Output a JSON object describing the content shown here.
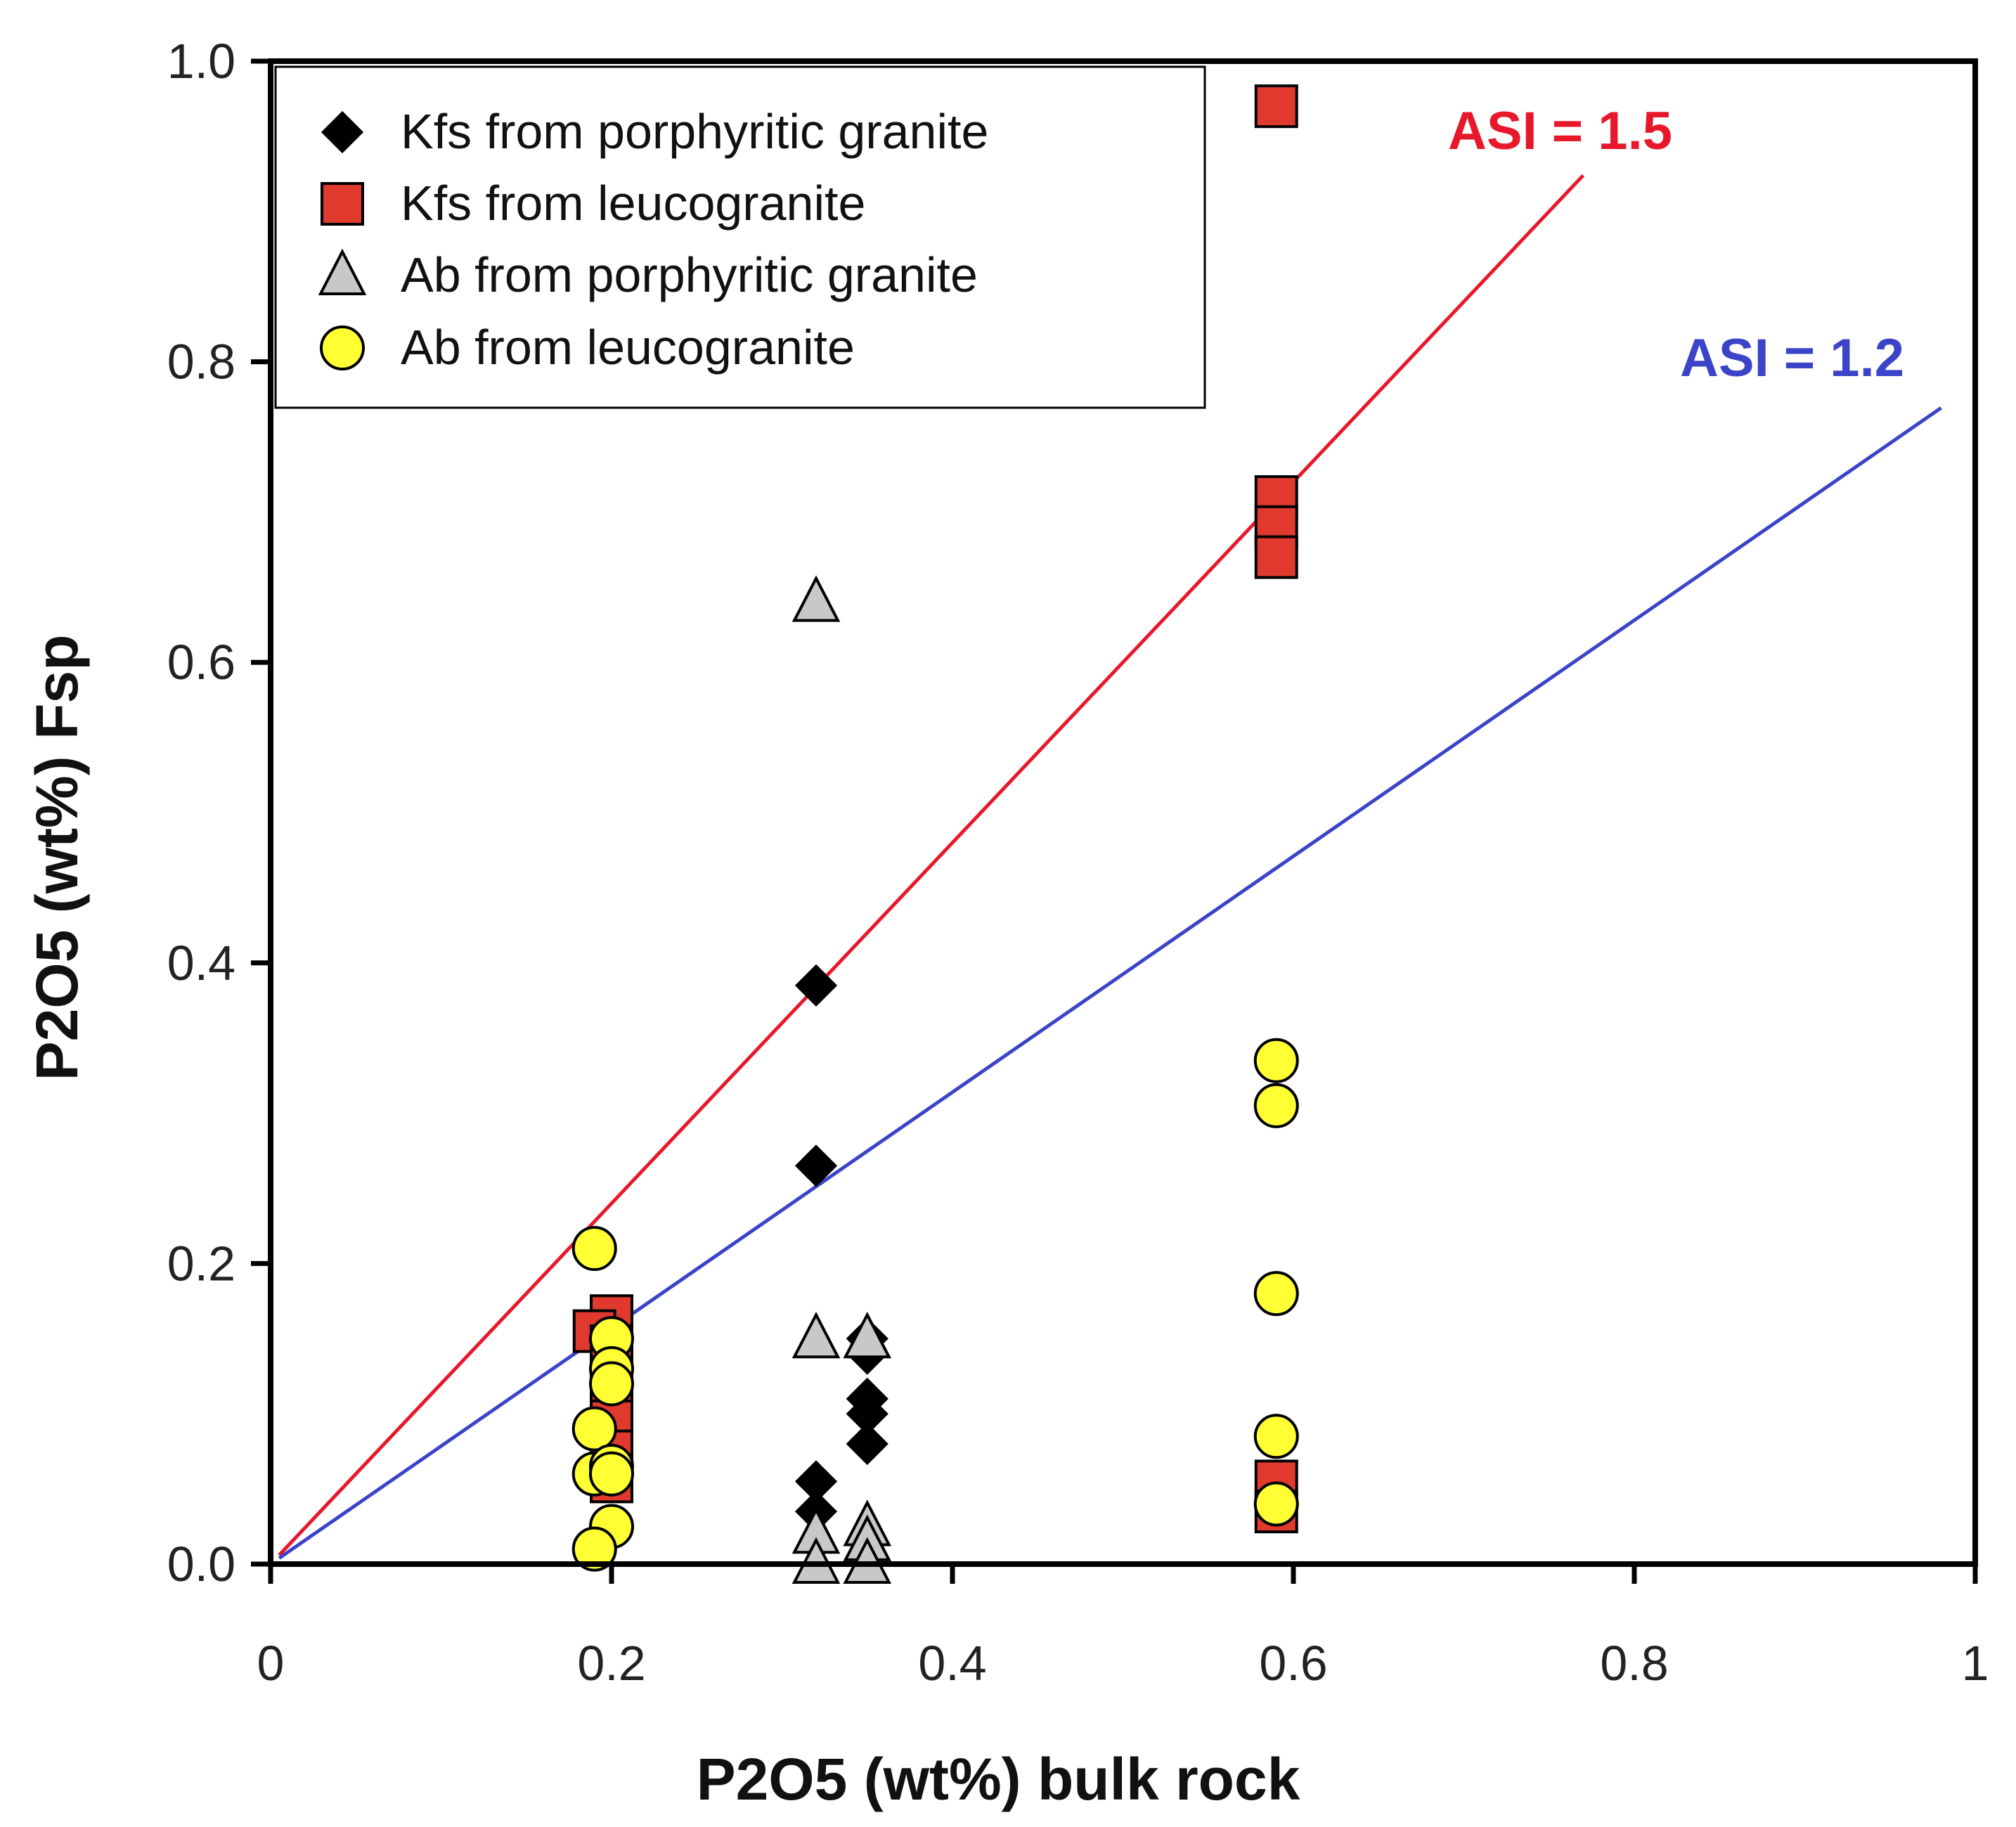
{
  "chart_data": {
    "type": "scatter",
    "title": "",
    "xlabel": "P2O5 (wt%) bulk rock",
    "ylabel": "P2O5 (wt%) Fsp",
    "xlim": [
      0,
      1
    ],
    "ylim": [
      0,
      1
    ],
    "x_ticks": [
      0,
      0.2,
      0.4,
      0.6,
      0.8,
      1
    ],
    "x_tick_labels": [
      "0",
      "0.2",
      "0.4",
      "0.6",
      "0.8",
      "1"
    ],
    "y_ticks": [
      0,
      0.2,
      0.4,
      0.6,
      0.8,
      1.0
    ],
    "y_tick_labels": [
      "0.0",
      "0.2",
      "0.4",
      "0.6",
      "0.8",
      "1.0"
    ],
    "legend_position": "top-left",
    "series": [
      {
        "name": "Kfs from porphyritic granite",
        "marker": "diamond",
        "color": "#000000",
        "points": [
          [
            0.32,
            0.385
          ],
          [
            0.32,
            0.265
          ],
          [
            0.32,
            0.055
          ],
          [
            0.32,
            0.035
          ],
          [
            0.35,
            0.15
          ],
          [
            0.35,
            0.14
          ],
          [
            0.35,
            0.11
          ],
          [
            0.35,
            0.1
          ],
          [
            0.35,
            0.08
          ]
        ]
      },
      {
        "name": "Kfs from leucogranite",
        "marker": "square",
        "color": "#e03a2f",
        "points": [
          [
            0.59,
            0.97
          ],
          [
            0.59,
            0.71
          ],
          [
            0.59,
            0.69
          ],
          [
            0.59,
            0.67
          ],
          [
            0.59,
            0.055
          ],
          [
            0.59,
            0.035
          ],
          [
            0.2,
            0.165
          ],
          [
            0.19,
            0.155
          ],
          [
            0.2,
            0.145
          ],
          [
            0.2,
            0.12
          ],
          [
            0.2,
            0.11
          ],
          [
            0.2,
            0.095
          ],
          [
            0.2,
            0.075
          ],
          [
            0.2,
            0.055
          ]
        ]
      },
      {
        "name": "Ab from porphyritic granite",
        "marker": "triangle",
        "color": "#c8c8c8",
        "points": [
          [
            0.32,
            0.64
          ],
          [
            0.32,
            0.15
          ],
          [
            0.35,
            0.15
          ],
          [
            0.32,
            0.02
          ],
          [
            0.32,
            0.0
          ],
          [
            0.35,
            0.025
          ],
          [
            0.35,
            0.015
          ],
          [
            0.35,
            0.0
          ]
        ]
      },
      {
        "name": "Ab from leucogranite",
        "marker": "circle",
        "color": "#ffff33",
        "points": [
          [
            0.19,
            0.21
          ],
          [
            0.2,
            0.15
          ],
          [
            0.2,
            0.13
          ],
          [
            0.2,
            0.12
          ],
          [
            0.19,
            0.09
          ],
          [
            0.19,
            0.06
          ],
          [
            0.2,
            0.065
          ],
          [
            0.2,
            0.06
          ],
          [
            0.2,
            0.025
          ],
          [
            0.19,
            0.01
          ],
          [
            0.59,
            0.335
          ],
          [
            0.59,
            0.305
          ],
          [
            0.59,
            0.18
          ],
          [
            0.59,
            0.085
          ],
          [
            0.59,
            0.04
          ]
        ]
      }
    ],
    "reference_lines": [
      {
        "label": "ASI = 1.5",
        "color": "#e8182b",
        "slope": 1.2,
        "x_end": 0.77
      },
      {
        "label": "ASI = 1.2",
        "color": "#3b44c8",
        "slope": 0.785,
        "x_end": 0.98
      }
    ]
  }
}
